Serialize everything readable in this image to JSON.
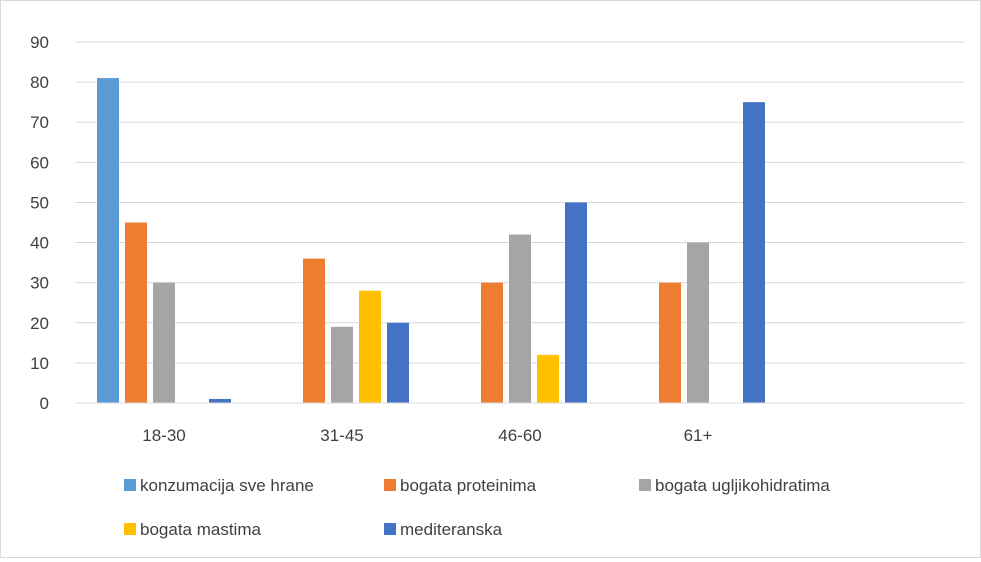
{
  "chart_data": {
    "type": "bar",
    "title": "",
    "xlabel": "",
    "ylabel": "",
    "categories": [
      "18-30",
      "31-45",
      "46-60",
      "61+",
      ""
    ],
    "ylim": [
      0,
      90
    ],
    "yticks": [
      0,
      10,
      20,
      30,
      40,
      50,
      60,
      70,
      80,
      90
    ],
    "grid": true,
    "legend_position": "bottom",
    "series": [
      {
        "name": "konzumacija sve hrane",
        "color": "#5B9BD5",
        "values": [
          81,
          0,
          0,
          0,
          0
        ]
      },
      {
        "name": "bogata proteinima",
        "color": "#ED7D31",
        "values": [
          45,
          36,
          30,
          30,
          0
        ]
      },
      {
        "name": "bogata ugljikohidratima",
        "color": "#A5A5A5",
        "values": [
          30,
          19,
          42,
          40,
          0
        ]
      },
      {
        "name": "bogata mastima",
        "color": "#FFC000",
        "values": [
          0,
          28,
          12,
          0,
          0
        ]
      },
      {
        "name": "mediteranska",
        "color": "#4472C4",
        "values": [
          1,
          20,
          50,
          75,
          0
        ]
      }
    ]
  }
}
